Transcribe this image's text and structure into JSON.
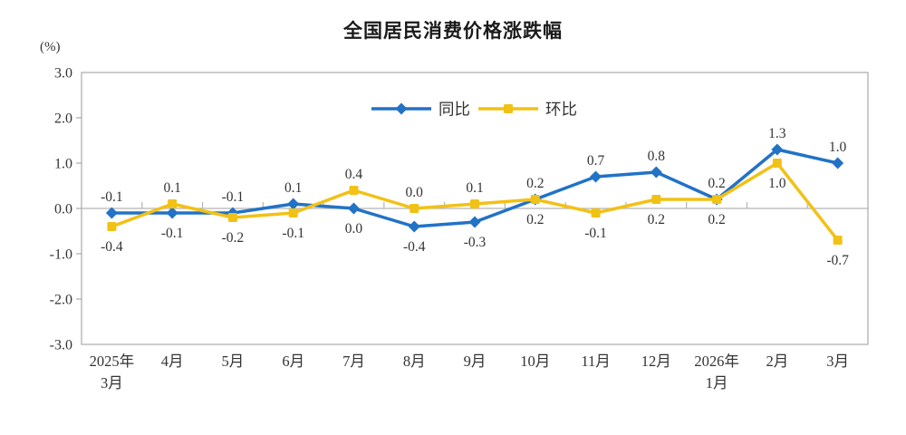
{
  "title": "全国居民消费价格涨跌幅",
  "unit_label": "(%)",
  "colors": {
    "yoy_blue": "#2272C6",
    "mom_gold": "#F2C116",
    "axis_border": "#A9A9A9",
    "zero_line": "#B3B3B3",
    "text": "#333333"
  },
  "chart_data": {
    "type": "line",
    "title": "全国居民消费价格涨跌幅",
    "ylabel": "(%)",
    "ylim": [
      -3.0,
      3.0
    ],
    "ytick_step": 1.0,
    "ytick_labels": [
      "3.0",
      "2.0",
      "1.0",
      "0.0",
      "-1.0",
      "-2.0",
      "-3.0"
    ],
    "categories": [
      [
        "2025年",
        "3月"
      ],
      [
        "4月"
      ],
      [
        "5月"
      ],
      [
        "6月"
      ],
      [
        "7月"
      ],
      [
        "8月"
      ],
      [
        "9月"
      ],
      [
        "10月"
      ],
      [
        "11月"
      ],
      [
        "12月"
      ],
      [
        "2026年",
        "1月"
      ],
      [
        "2月"
      ],
      [
        "3月"
      ]
    ],
    "series": [
      {
        "name": "同比",
        "marker": "diamond",
        "color": "#2272C6",
        "values": [
          -0.1,
          -0.1,
          -0.1,
          0.1,
          0.0,
          -0.4,
          -0.3,
          0.2,
          0.7,
          0.8,
          0.2,
          1.3,
          1.0
        ]
      },
      {
        "name": "环比",
        "marker": "square",
        "color": "#F2C116",
        "values": [
          -0.4,
          0.1,
          -0.2,
          -0.1,
          0.4,
          0.0,
          0.1,
          0.2,
          -0.1,
          0.2,
          0.2,
          1.0,
          -0.7
        ]
      }
    ],
    "legend_position": "top-center",
    "grid": false,
    "data_labels": true
  }
}
